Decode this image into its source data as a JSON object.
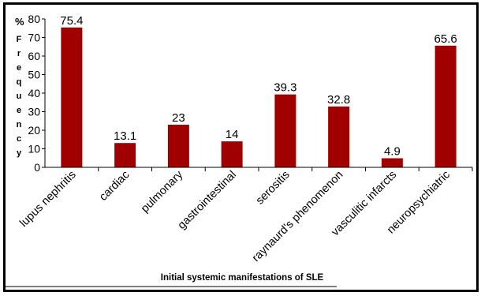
{
  "chart_data": {
    "type": "bar",
    "categories": [
      "lupus nephritis",
      "cardiac",
      "pulmonary",
      "gastrointestinal",
      "serositis",
      "raynaurd's phenomenon",
      "vasculitic infarcts",
      "neuropsychiatric"
    ],
    "values": [
      75.4,
      13.1,
      23,
      14,
      39.3,
      32.8,
      4.9,
      65.6
    ],
    "data_labels": [
      "75.4",
      "13.1",
      "23",
      "14",
      "39.3",
      "32.8",
      "4.9",
      "65.6"
    ],
    "ylim": [
      0,
      80
    ],
    "yticks": [
      0,
      10,
      20,
      30,
      40,
      50,
      60,
      70,
      80
    ],
    "ylabel_unit": "%",
    "ylabel_letters": [
      "F",
      "r",
      "e",
      "q",
      "u",
      "e",
      "n",
      "c",
      "y"
    ],
    "xlabel": "Initial systemic manifestations of SLE",
    "bar_color": "#a00000",
    "grid": false,
    "legend": "none"
  }
}
